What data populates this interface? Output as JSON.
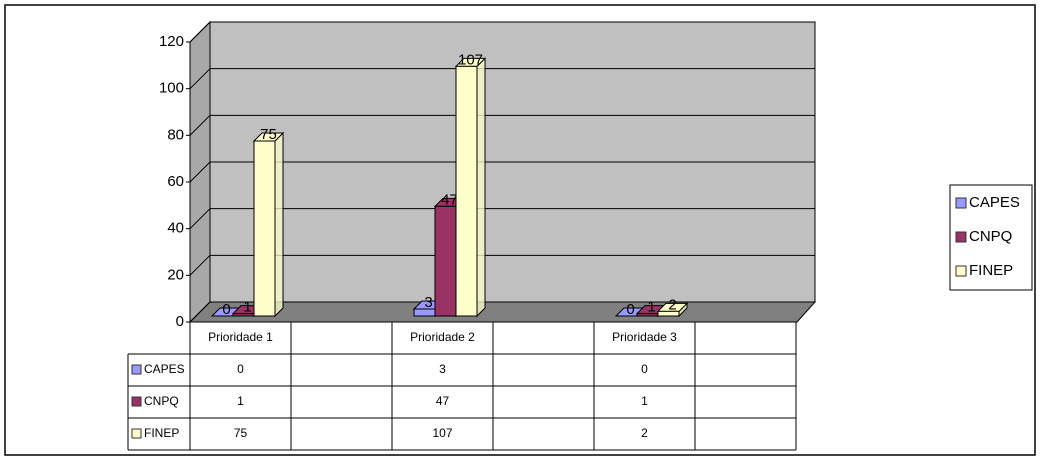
{
  "chart_data": {
    "type": "bar3d",
    "categories": [
      "Prioridade 1",
      null,
      "Prioridade 2",
      null,
      "Prioridade 3",
      null
    ],
    "series": [
      {
        "name": "CAPES",
        "color": "#9999ff",
        "values": [
          0,
          null,
          3,
          null,
          0,
          null
        ]
      },
      {
        "name": "CNPQ",
        "color": "#993366",
        "values": [
          1,
          null,
          47,
          null,
          1,
          null
        ]
      },
      {
        "name": "FINEP",
        "color": "#ffffcc",
        "values": [
          75,
          null,
          107,
          null,
          2,
          null
        ]
      }
    ],
    "ylim": [
      0,
      120
    ],
    "yticks": [
      0,
      20,
      40,
      60,
      80,
      100,
      120
    ],
    "grid": true,
    "legend": "right",
    "data_table": true
  }
}
